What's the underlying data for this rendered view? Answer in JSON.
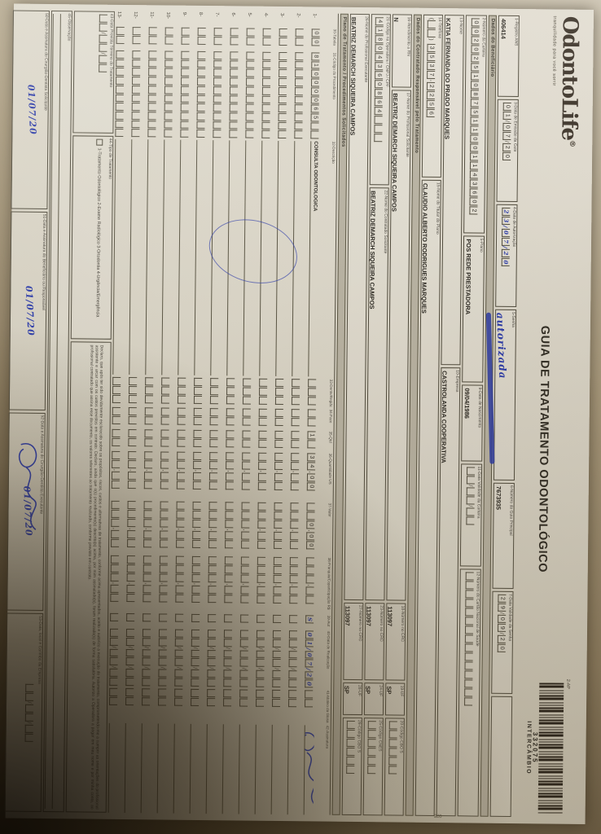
{
  "logo": {
    "name": "OdontoLife",
    "registered": "®",
    "tagline": "tranquilidade para você sorrir"
  },
  "title": "GUIA DE TRATAMENTO ODONTOLÓGICO",
  "ap_code": "2-AP",
  "edge_code": "025 -",
  "barcode": {
    "number": "332075",
    "label": "INTERCÂMBIO"
  },
  "guia": {
    "registro_ans": {
      "label": "1-Registro ANS",
      "value": "406414"
    },
    "emissao": {
      "label": "3-Data de Emissão da Guia",
      "value": "01/07/20"
    },
    "autorizacao": {
      "label": "4-Data de Autorização",
      "value": "23/07/20"
    },
    "senha": {
      "label": "5-Senha",
      "value": "autorizada"
    },
    "guia_principal": {
      "label": "6-Número da Guia Principal",
      "value": "7673935"
    },
    "validade_senha": {
      "label": "7-Data Validade da Senha",
      "value": "29/09/20"
    }
  },
  "beneficiario": {
    "section": "Dados do Beneficiário",
    "carteira": {
      "label": "2-Número da Carteira",
      "value": "0020251087511001143602"
    },
    "plano": {
      "label": "5-Plano",
      "value": "POS REDE PRESTADORA"
    },
    "nascimento": {
      "label": "9-Data de Nascimento",
      "value": "09/04/1986"
    },
    "validade_carteira": {
      "label": "11-Data Validade da Carteira",
      "value": ""
    },
    "cns": {
      "label": "12-Número do Cartão Nacional de Saúde",
      "value": ""
    },
    "nome": {
      "label": "13-Nome",
      "value": "KATIA FERNANDA DO PRADO MARQUES"
    },
    "empresa": {
      "label": "10-Empresa",
      "value": "CASTROLANDA COOPERATIVA"
    },
    "telefone": {
      "label": "14-Telefone",
      "value": "3537-2256"
    },
    "titular": {
      "label": "15-Nome do Titular do Plano",
      "value": "CLAUDIO ALBERTO RODRIGUES MARQUES"
    }
  },
  "contratado": {
    "section": "Dados do Contratado Responsável pelo Tratamento",
    "rn": {
      "label": "16-Atendimento a RN",
      "value": "N"
    },
    "prof_solicitante": {
      "label": "17-Nome do Profissional Solicitante",
      "value": "BEATRIZ DEMARCH SIQUEIRA CAMPOS"
    },
    "cro1": {
      "label": "18-Número no CRO",
      "value": "113097"
    },
    "uf1": {
      "label": "19-UF",
      "value": "SP"
    },
    "cbo1": {
      "label": "20-Código CBO S",
      "value": ""
    },
    "codigo_operadora": {
      "label": "21-Código na Operadora / CNPJ / CPF",
      "value": "41804360864"
    },
    "contratado_solicitante": {
      "label": "22-Nome do Contratado Solicitante",
      "value": "BEATRIZ DEMARCH SIQUEIRA CAMPOS"
    },
    "cro2": {
      "label": "23-Número no CRO",
      "value": "113097"
    },
    "uf2": {
      "label": "24-UF",
      "value": "SP"
    },
    "cnes": {
      "label": "25-Código CNES",
      "value": ""
    },
    "prof_executante": {
      "label": "26-Nome do Profissional Executante",
      "value": "BEATRIZ DEMARCH SIQUEIRA CAMPOS"
    },
    "cro3": {
      "label": "27-Número no CRO",
      "value": "113097"
    },
    "uf3": {
      "label": "28-UF",
      "value": "SP"
    },
    "cbo3": {
      "label": "29-Código CBO S",
      "value": ""
    }
  },
  "tratamento": {
    "section": "Plano de Tratamento / Procedimentos Solicitados",
    "columns": [
      "30-Tabela",
      "31-Código do Procedimento",
      "32-Descrição",
      "33-Dente/Região",
      "34-Face",
      "35-Qtd",
      "36-Quantidade US",
      "37-Valor",
      "38-Franquia/Coparticipação R$",
      "39-Aut",
      "40-Data de Realização",
      "41-Motivo da Glosa",
      "42-Assinatura"
    ],
    "rows": [
      {
        "num": "1-",
        "tabela": "00",
        "codigo": "81000065",
        "descricao": "CONSULTA ODONTOLOGICA",
        "dente": "",
        "face": "",
        "qtd": "1",
        "qtd_us": "34,00",
        "valor": "0,00",
        "franquia": "",
        "aut": "S",
        "data": "01/07/20",
        "glosa": "",
        "signed": true
      },
      {
        "num": "2-"
      },
      {
        "num": "3-"
      },
      {
        "num": "4-"
      },
      {
        "num": "5-"
      },
      {
        "num": "6-"
      },
      {
        "num": "7-"
      },
      {
        "num": "8-"
      },
      {
        "num": "9-"
      },
      {
        "num": "10-"
      },
      {
        "num": "11-"
      },
      {
        "num": "12-"
      },
      {
        "num": "13-"
      }
    ]
  },
  "rodape": {
    "previsao": {
      "label": "43-Data Prevista Término do Tratamento",
      "value": ""
    },
    "tipo": {
      "label": "44-Tipo de Tratamento",
      "options": "1-Tratamento Odontológico    2-Exame Radiológico    3-Ortodontia    4-Urgência/Emergência"
    },
    "declaracao": "Declaro, que após ter sido devidamente esclarecido sobre os propósitos, riscos, custos e alternativas de tratamento, conforme acima apresentados, aceito e autorizo a execução do tratamento, comprometendo-me a cumprir as orientações do profissional assistente e arcar com os custos previstos em contrato. Declaro, ainda que o(s) procedimento(s) descrito(s) acima, por mim assinalado(s), foram realizado(s) de forma satisfatória. Autorizo a Operadora a pagar em meu nome e por minha conta, ao profissional contratado que assina esse documento, os valores referentes ao tratamento realizado, conforme previsto em contrato.",
    "observacao": {
      "label": "45-Observação"
    },
    "assinaturas": [
      {
        "label": "50-Data e Assinatura do Cirurgião-Dentista Solicitante",
        "value": "01/07/20"
      },
      {
        "label": "51-Data e Assinatura do Beneficiário ou Responsável",
        "value": "01/07/20"
      },
      {
        "label": "52-Data e Assinatura do Cirurgião-Dentista Executante",
        "value": "01/07/20"
      },
      {
        "label": "53-Data, local e Carimbo da Empresa",
        "value": ""
      }
    ]
  }
}
